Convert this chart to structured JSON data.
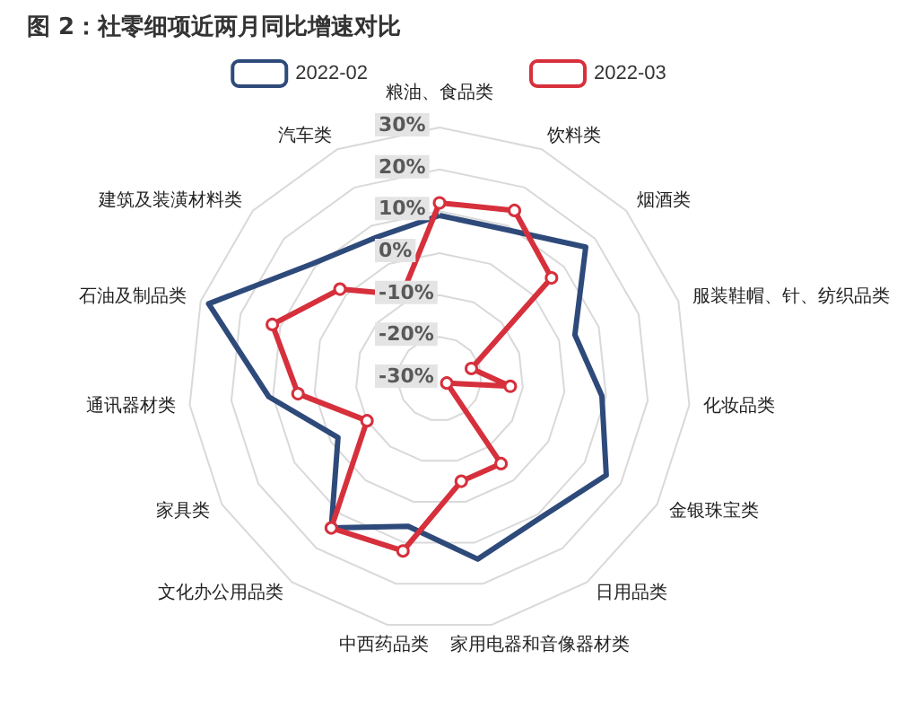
{
  "chart_data": {
    "type": "radar",
    "title": "图 2：社零细项近两月同比增速对比",
    "categories": [
      "粮油、食品类",
      "饮料类",
      "烟酒类",
      "服装鞋帽、针、纺织品类",
      "化妆品类",
      "金银珠宝类",
      "日用品类",
      "家用电器和音像器材类",
      "中西药品类",
      "文化办公用品类",
      "家具类",
      "通讯器材类",
      "石油及制品类",
      "建筑及装潢材料类",
      "汽车类"
    ],
    "series": [
      {
        "name": "2022-02",
        "color": "#2e4a7a",
        "marker": "none",
        "values": [
          9,
          9,
          17,
          4,
          9,
          16,
          11,
          14,
          6,
          14,
          -2,
          11,
          28,
          11,
          7
        ]
      },
      {
        "name": "2022-03",
        "color": "#d6303c",
        "marker": "circle",
        "values": [
          12,
          14,
          6,
          -22,
          -13,
          -28,
          -5,
          -5,
          12,
          14,
          -10,
          4,
          12,
          2,
          -8
        ]
      }
    ],
    "ylim": [
      -30,
      30
    ],
    "yticks": [
      {
        "value": -30,
        "label": "-30%"
      },
      {
        "value": -20,
        "label": "-20%"
      },
      {
        "value": -10,
        "label": "-10%"
      },
      {
        "value": 0,
        "label": "0%"
      },
      {
        "value": 10,
        "label": "10%"
      },
      {
        "value": 20,
        "label": "20%"
      },
      {
        "value": 30,
        "label": "30%"
      }
    ],
    "grid": true,
    "legend": "top"
  }
}
